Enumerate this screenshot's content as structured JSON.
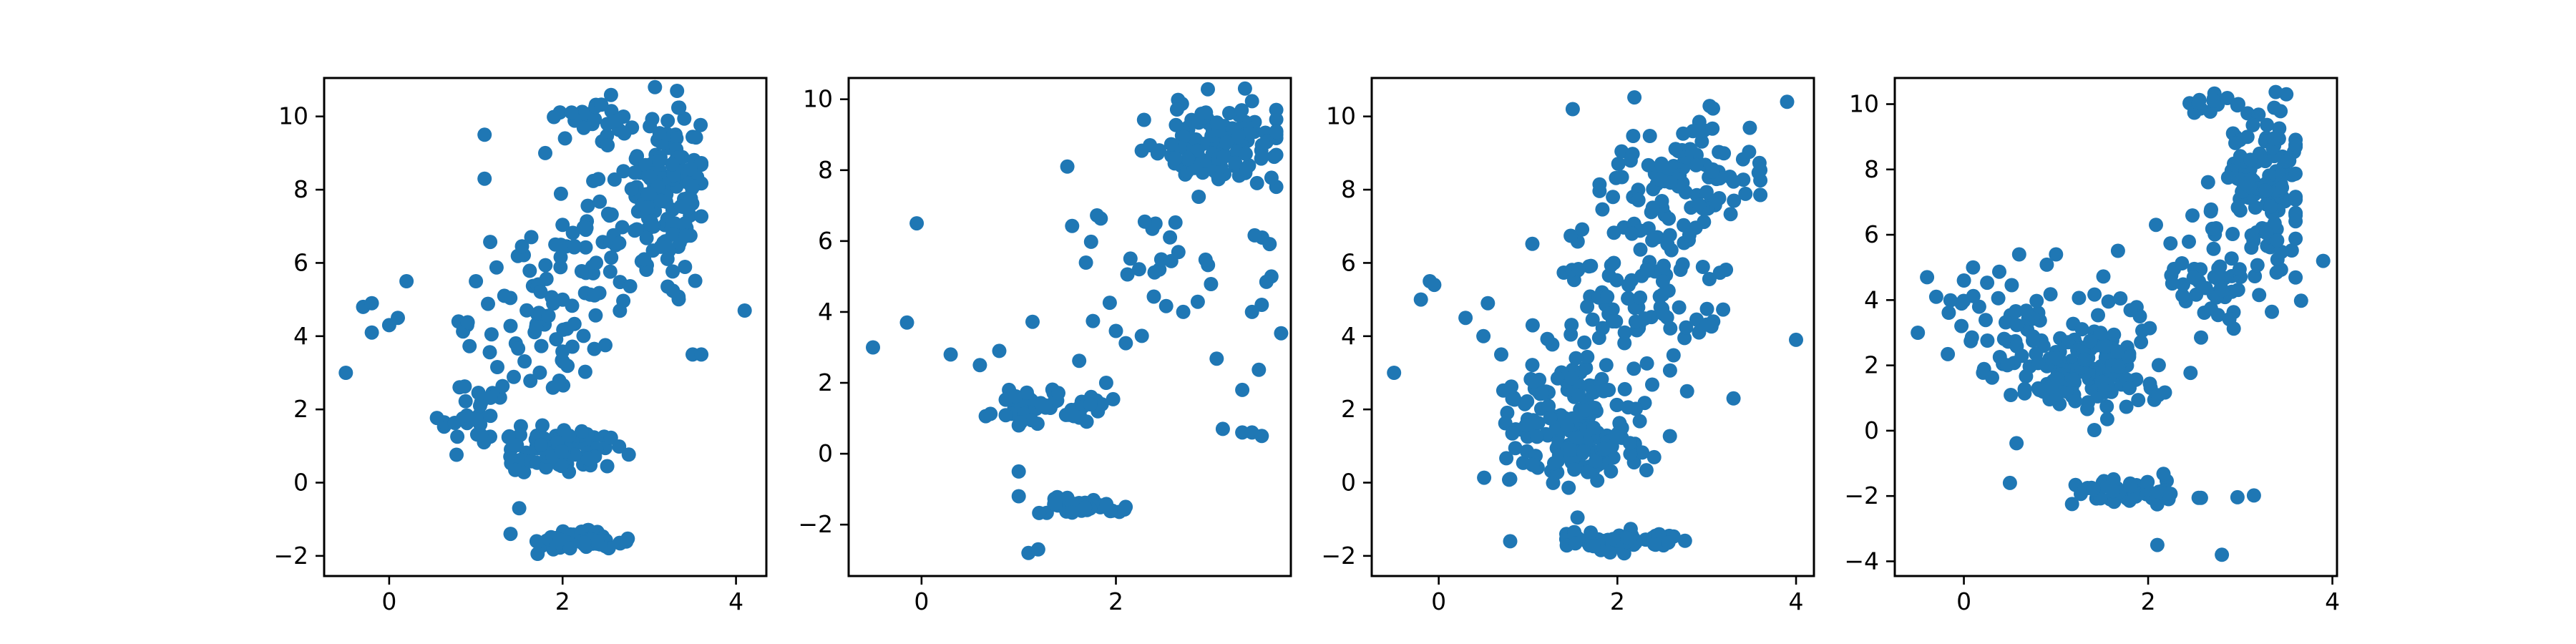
{
  "chart_data": [
    {
      "type": "scatter",
      "color": "#1f77b4",
      "xlim": [
        -0.75,
        4.35
      ],
      "ylim": [
        -2.55,
        11.05
      ],
      "xticks": [
        0,
        2,
        4
      ],
      "yticks": [
        -2,
        0,
        2,
        4,
        6,
        8,
        10
      ],
      "grid": false,
      "clusters": [
        {
          "cx": 3.2,
          "cy": 8.0,
          "sx": 0.25,
          "sy": 1.1,
          "n": 150,
          "xmin": 2.5,
          "xmax": 3.6
        },
        {
          "cx": 2.3,
          "cy": 10.0,
          "sx": 0.25,
          "sy": 0.25,
          "n": 25,
          "xmin": 1.9,
          "xmax": 2.9
        },
        {
          "cx": 2.2,
          "cy": -1.6,
          "sx": 0.25,
          "sy": 0.12,
          "n": 70,
          "xmin": 1.7,
          "xmax": 2.9
        },
        {
          "cx": 2.0,
          "cy": 0.9,
          "sx": 0.35,
          "sy": 0.3,
          "n": 80,
          "xmin": 1.2,
          "xmax": 2.8
        },
        {
          "cx": 1.0,
          "cy": 1.8,
          "sx": 0.25,
          "sy": 0.4,
          "n": 30
        },
        {
          "cx": 1.8,
          "cy": 4.5,
          "sx": 0.4,
          "sy": 1.4,
          "n": 70
        },
        {
          "cx": 2.4,
          "cy": 6.5,
          "sx": 0.4,
          "sy": 0.8,
          "n": 40
        }
      ],
      "points": [
        [
          -0.5,
          3.0
        ],
        [
          -0.3,
          4.8
        ],
        [
          -0.2,
          4.9
        ],
        [
          -0.2,
          4.1
        ],
        [
          0.0,
          4.3
        ],
        [
          0.1,
          4.5
        ],
        [
          0.2,
          5.5
        ],
        [
          1.1,
          9.5
        ],
        [
          1.1,
          8.3
        ],
        [
          4.1,
          4.7
        ],
        [
          3.5,
          3.5
        ],
        [
          3.6,
          3.5
        ],
        [
          0.8,
          4.4
        ],
        [
          0.9,
          4.3
        ],
        [
          1.0,
          5.5
        ],
        [
          1.5,
          -0.7
        ],
        [
          1.4,
          -1.4
        ],
        [
          1.8,
          9.0
        ]
      ]
    },
    {
      "type": "scatter",
      "color": "#1f77b4",
      "xlim": [
        -0.75,
        3.8
      ],
      "ylim": [
        -3.45,
        10.6
      ],
      "xticks": [
        0,
        2
      ],
      "yticks": [
        -2,
        0,
        2,
        4,
        6,
        8,
        10
      ],
      "grid": false,
      "clusters": [
        {
          "cx": 3.1,
          "cy": 8.7,
          "sx": 0.35,
          "sy": 0.6,
          "n": 130,
          "xmin": 2.2,
          "xmax": 3.7
        },
        {
          "cx": 1.4,
          "cy": 1.3,
          "sx": 0.3,
          "sy": 0.25,
          "n": 45
        },
        {
          "cx": 1.6,
          "cy": -1.5,
          "sx": 0.2,
          "sy": 0.15,
          "n": 35
        },
        {
          "cx": 2.5,
          "cy": 5.5,
          "sx": 0.6,
          "sy": 1.5,
          "n": 40
        }
      ],
      "points": [
        [
          -0.5,
          3.0
        ],
        [
          -0.05,
          6.5
        ],
        [
          -0.15,
          3.7
        ],
        [
          0.3,
          2.8
        ],
        [
          0.6,
          2.5
        ],
        [
          0.8,
          2.9
        ],
        [
          0.9,
          1.8
        ],
        [
          1.0,
          0.8
        ],
        [
          1.0,
          -0.5
        ],
        [
          1.0,
          -1.2
        ],
        [
          1.1,
          -2.8
        ],
        [
          1.2,
          -2.7
        ],
        [
          3.1,
          0.7
        ],
        [
          3.3,
          0.6
        ],
        [
          3.4,
          0.6
        ],
        [
          3.5,
          0.5
        ],
        [
          3.3,
          1.8
        ],
        [
          3.7,
          3.4
        ],
        [
          3.6,
          5.0
        ],
        [
          3.5,
          4.2
        ],
        [
          3.4,
          4.0
        ],
        [
          1.5,
          8.1
        ],
        [
          1.9,
          2.0
        ],
        [
          1.8,
          1.5
        ],
        [
          2.1,
          -1.5
        ]
      ]
    },
    {
      "type": "scatter",
      "color": "#1f77b4",
      "xlim": [
        -0.75,
        4.2
      ],
      "ylim": [
        -2.55,
        11.05
      ],
      "xticks": [
        0,
        2,
        4
      ],
      "yticks": [
        -2,
        0,
        2,
        4,
        6,
        8,
        10
      ],
      "grid": false,
      "clusters": [
        {
          "cx": 1.4,
          "cy": 1.6,
          "sx": 0.35,
          "sy": 0.9,
          "n": 150
        },
        {
          "cx": 2.7,
          "cy": 8.2,
          "sx": 0.5,
          "sy": 1.1,
          "n": 110,
          "xmin": 1.8,
          "xmax": 3.6
        },
        {
          "cx": 2.2,
          "cy": 5.0,
          "sx": 0.55,
          "sy": 1.3,
          "n": 90
        },
        {
          "cx": 2.0,
          "cy": -1.6,
          "sx": 0.35,
          "sy": 0.15,
          "n": 60
        },
        {
          "cx": 1.8,
          "cy": 0.9,
          "sx": 0.3,
          "sy": 0.25,
          "n": 30
        }
      ],
      "points": [
        [
          -0.5,
          3.0
        ],
        [
          -0.2,
          5.0
        ],
        [
          -0.1,
          5.5
        ],
        [
          -0.05,
          5.4
        ],
        [
          0.3,
          4.5
        ],
        [
          0.5,
          4.0
        ],
        [
          0.55,
          4.9
        ],
        [
          0.7,
          3.5
        ],
        [
          0.8,
          0.1
        ],
        [
          0.8,
          -1.6
        ],
        [
          4.0,
          3.9
        ],
        [
          3.3,
          2.3
        ],
        [
          3.9,
          10.4
        ],
        [
          1.5,
          10.2
        ]
      ]
    },
    {
      "type": "scatter",
      "color": "#1f77b4",
      "xlim": [
        -0.75,
        4.05
      ],
      "ylim": [
        -4.45,
        10.8
      ],
      "xticks": [
        0,
        2,
        4
      ],
      "yticks": [
        -4,
        -2,
        0,
        2,
        4,
        6,
        8,
        10
      ],
      "grid": false,
      "clusters": [
        {
          "cx": 1.3,
          "cy": 1.8,
          "sx": 0.4,
          "sy": 0.7,
          "n": 150
        },
        {
          "cx": 3.3,
          "cy": 7.8,
          "sx": 0.25,
          "sy": 1.3,
          "n": 120,
          "xmin": 2.6,
          "xmax": 3.6
        },
        {
          "cx": 2.5,
          "cy": 4.5,
          "sx": 0.5,
          "sy": 0.8,
          "n": 60
        },
        {
          "cx": 1.9,
          "cy": -1.9,
          "sx": 0.35,
          "sy": 0.2,
          "n": 55
        },
        {
          "cx": 0.5,
          "cy": 3.3,
          "sx": 0.4,
          "sy": 1.0,
          "n": 40
        },
        {
          "cx": 2.7,
          "cy": 10.0,
          "sx": 0.2,
          "sy": 0.15,
          "n": 12
        }
      ],
      "points": [
        [
          -0.5,
          3.0
        ],
        [
          -0.4,
          4.7
        ],
        [
          -0.3,
          4.1
        ],
        [
          0.0,
          4.6
        ],
        [
          0.5,
          -1.6
        ],
        [
          0.1,
          5.0
        ],
        [
          2.1,
          -3.5
        ],
        [
          2.8,
          -3.8
        ],
        [
          3.9,
          5.2
        ],
        [
          3.5,
          10.3
        ],
        [
          1.0,
          5.4
        ],
        [
          0.6,
          5.4
        ]
      ]
    }
  ]
}
